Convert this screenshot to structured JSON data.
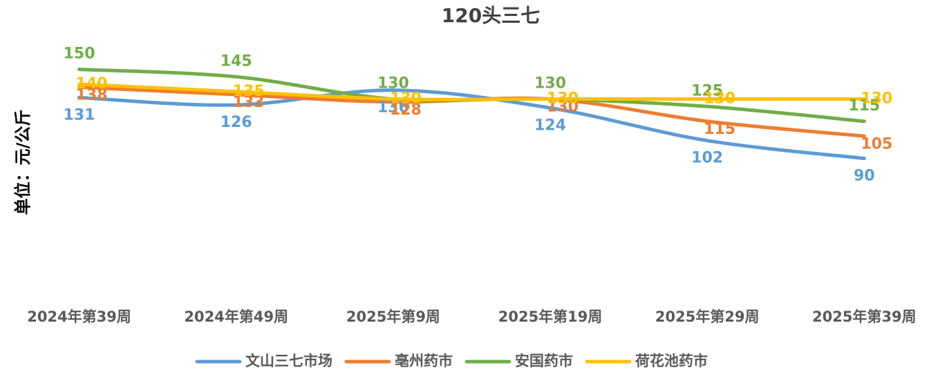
{
  "chart_data": {
    "type": "line",
    "title": "120头三七",
    "y_label": "单位：元/公斤",
    "categories": [
      "2024年第39周",
      "2024年第49周",
      "2025年第9周",
      "2025年第19周",
      "2025年第29周",
      "2025年第39周"
    ],
    "series": [
      {
        "name": "文山三七市场",
        "color": "#5b9bd5",
        "values": [
          131,
          126,
          136,
          124,
          102,
          90
        ]
      },
      {
        "name": "亳州药市",
        "color": "#ed7d31",
        "values": [
          138,
          133,
          128,
          130,
          115,
          105
        ]
      },
      {
        "name": "安国药市",
        "color": "#70ad47",
        "values": [
          150,
          145,
          130,
          130,
          125,
          115
        ]
      },
      {
        "name": "荷花池药市",
        "color": "#ffc000",
        "values": [
          140,
          135,
          130,
          130,
          130,
          130
        ]
      }
    ],
    "ylim": [
      0,
      160
    ],
    "legend": "bottom",
    "smooth": true
  }
}
